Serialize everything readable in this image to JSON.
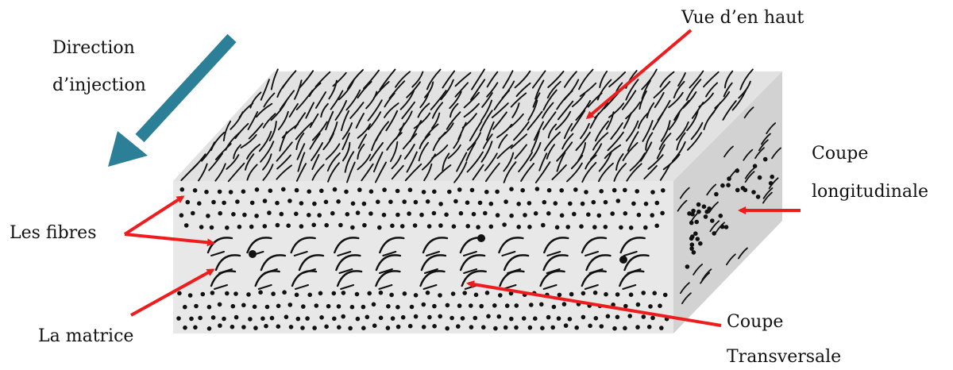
{
  "labels": {
    "direction_line1": "Direction",
    "direction_line2": "d’injection",
    "top_view": "Vue d’en haut",
    "longitudinal_line1": "Coupe",
    "longitudinal_line2": "longitudinale",
    "fibres": "Les fibres",
    "matrix": "La matrice",
    "transversal_line1": "Coupe",
    "transversal_line2": "Transversale"
  },
  "colors": {
    "front_face": "#e8e8e8",
    "top_face": "#e2e2e2",
    "side_face": "#d2d2d2",
    "fiber": "#111111",
    "pointer_arrow": "#ee1c1c",
    "direction_arrow": "#2b7f96"
  }
}
